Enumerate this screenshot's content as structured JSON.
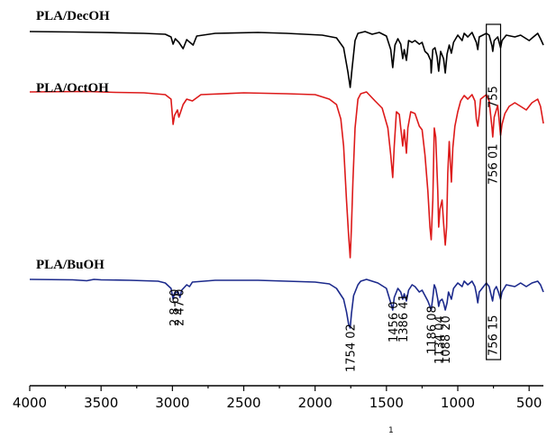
{
  "chart_data": {
    "type": "line",
    "xlabel": "1",
    "xlim": [
      4000,
      400
    ],
    "x_reversed": true,
    "xticks": [
      "4000",
      "3500",
      "3000",
      "2500",
      "2000",
      "1500",
      "1000",
      "500"
    ],
    "xtick_values": [
      4000,
      3500,
      3000,
      2500,
      2000,
      1500,
      1000,
      500
    ],
    "colors": {
      "PLA/DecOH": "#000000",
      "PLA/OctOH": "#dd1a1a",
      "PLA/BuOH": "#1c2a8c"
    },
    "series": [
      {
        "name": "PLA/DecOH",
        "offset": 35,
        "points": [
          [
            4000,
            0
          ],
          [
            3700,
            -0.5
          ],
          [
            3500,
            -1
          ],
          [
            3200,
            -2
          ],
          [
            3050,
            -3
          ],
          [
            3010,
            -6
          ],
          [
            2995,
            -14
          ],
          [
            2980,
            -8
          ],
          [
            2955,
            -12
          ],
          [
            2925,
            -19
          ],
          [
            2900,
            -9
          ],
          [
            2855,
            -15
          ],
          [
            2830,
            -5
          ],
          [
            2700,
            -2
          ],
          [
            2400,
            -1
          ],
          [
            2200,
            -2
          ],
          [
            1950,
            -4
          ],
          [
            1850,
            -7
          ],
          [
            1800,
            -18
          ],
          [
            1770,
            -45
          ],
          [
            1754,
            -62
          ],
          [
            1740,
            -40
          ],
          [
            1720,
            -10
          ],
          [
            1700,
            -2
          ],
          [
            1650,
            0
          ],
          [
            1600,
            -3
          ],
          [
            1550,
            -1
          ],
          [
            1500,
            -5
          ],
          [
            1470,
            -20
          ],
          [
            1456,
            -40
          ],
          [
            1440,
            -15
          ],
          [
            1420,
            -8
          ],
          [
            1400,
            -14
          ],
          [
            1386,
            -30
          ],
          [
            1375,
            -20
          ],
          [
            1360,
            -32
          ],
          [
            1345,
            -10
          ],
          [
            1320,
            -12
          ],
          [
            1300,
            -10
          ],
          [
            1270,
            -14
          ],
          [
            1250,
            -12
          ],
          [
            1230,
            -22
          ],
          [
            1210,
            -25
          ],
          [
            1190,
            -32
          ],
          [
            1186,
            -46
          ],
          [
            1175,
            -20
          ],
          [
            1160,
            -18
          ],
          [
            1145,
            -28
          ],
          [
            1134,
            -44
          ],
          [
            1120,
            -22
          ],
          [
            1100,
            -30
          ],
          [
            1088,
            -46
          ],
          [
            1075,
            -25
          ],
          [
            1060,
            -15
          ],
          [
            1045,
            -24
          ],
          [
            1030,
            -12
          ],
          [
            1000,
            -4
          ],
          [
            970,
            -10
          ],
          [
            955,
            -2
          ],
          [
            930,
            -6
          ],
          [
            900,
            -1
          ],
          [
            870,
            -12
          ],
          [
            860,
            -20
          ],
          [
            850,
            -6
          ],
          [
            800,
            -2
          ],
          [
            780,
            -4
          ],
          [
            760,
            -16
          ],
          [
            755,
            -22
          ],
          [
            745,
            -10
          ],
          [
            720,
            -6
          ],
          [
            700,
            -18
          ],
          [
            690,
            -10
          ],
          [
            660,
            -4
          ],
          [
            600,
            -6
          ],
          [
            560,
            -4
          ],
          [
            500,
            -10
          ],
          [
            470,
            -6
          ],
          [
            440,
            -2
          ],
          [
            420,
            -8
          ],
          [
            400,
            -15
          ]
        ]
      },
      {
        "name": "PLA/OctOH",
        "offset": 0,
        "points": [
          [
            4000,
            0
          ],
          [
            3600,
            0.5
          ],
          [
            3400,
            -0.5
          ],
          [
            3200,
            -1
          ],
          [
            3050,
            -3
          ],
          [
            3010,
            -8
          ],
          [
            2995,
            -36
          ],
          [
            2985,
            -26
          ],
          [
            2965,
            -20
          ],
          [
            2955,
            -28
          ],
          [
            2925,
            -14
          ],
          [
            2900,
            -8
          ],
          [
            2860,
            -10
          ],
          [
            2800,
            -3
          ],
          [
            2500,
            -1
          ],
          [
            2200,
            -2
          ],
          [
            2000,
            -3
          ],
          [
            1900,
            -8
          ],
          [
            1850,
            -14
          ],
          [
            1820,
            -30
          ],
          [
            1800,
            -60
          ],
          [
            1780,
            -120
          ],
          [
            1765,
            -160
          ],
          [
            1754,
            -184
          ],
          [
            1745,
            -150
          ],
          [
            1735,
            -100
          ],
          [
            1720,
            -40
          ],
          [
            1700,
            -8
          ],
          [
            1680,
            -2
          ],
          [
            1640,
            0
          ],
          [
            1580,
            -10
          ],
          [
            1530,
            -18
          ],
          [
            1490,
            -40
          ],
          [
            1470,
            -70
          ],
          [
            1456,
            -95
          ],
          [
            1445,
            -60
          ],
          [
            1430,
            -22
          ],
          [
            1410,
            -25
          ],
          [
            1386,
            -60
          ],
          [
            1375,
            -42
          ],
          [
            1360,
            -68
          ],
          [
            1350,
            -40
          ],
          [
            1330,
            -22
          ],
          [
            1300,
            -24
          ],
          [
            1270,
            -38
          ],
          [
            1250,
            -42
          ],
          [
            1230,
            -70
          ],
          [
            1210,
            -110
          ],
          [
            1195,
            -150
          ],
          [
            1186,
            -164
          ],
          [
            1175,
            -120
          ],
          [
            1165,
            -40
          ],
          [
            1155,
            -50
          ],
          [
            1140,
            -110
          ],
          [
            1134,
            -150
          ],
          [
            1125,
            -130
          ],
          [
            1110,
            -120
          ],
          [
            1100,
            -145
          ],
          [
            1088,
            -170
          ],
          [
            1078,
            -150
          ],
          [
            1070,
            -90
          ],
          [
            1060,
            -55
          ],
          [
            1045,
            -100
          ],
          [
            1035,
            -62
          ],
          [
            1020,
            -38
          ],
          [
            1000,
            -22
          ],
          [
            980,
            -10
          ],
          [
            955,
            -4
          ],
          [
            930,
            -8
          ],
          [
            900,
            -3
          ],
          [
            880,
            -10
          ],
          [
            870,
            -30
          ],
          [
            860,
            -38
          ],
          [
            850,
            -25
          ],
          [
            840,
            -8
          ],
          [
            800,
            -3
          ],
          [
            780,
            -10
          ],
          [
            760,
            -40
          ],
          [
            755,
            -50
          ],
          [
            745,
            -28
          ],
          [
            730,
            -20
          ],
          [
            720,
            -15
          ],
          [
            700,
            -48
          ],
          [
            690,
            -36
          ],
          [
            670,
            -24
          ],
          [
            640,
            -16
          ],
          [
            600,
            -12
          ],
          [
            560,
            -16
          ],
          [
            520,
            -20
          ],
          [
            480,
            -12
          ],
          [
            440,
            -8
          ],
          [
            420,
            -16
          ],
          [
            400,
            -35
          ]
        ]
      },
      {
        "name": "PLA/BuOH",
        "offset": 310,
        "points": [
          [
            4000,
            0
          ],
          [
            3700,
            -0.5
          ],
          [
            3600,
            -1.5
          ],
          [
            3550,
            0
          ],
          [
            3500,
            -0.5
          ],
          [
            3300,
            -1
          ],
          [
            3100,
            -2
          ],
          [
            3050,
            -4
          ],
          [
            3010,
            -10
          ],
          [
            2995,
            -22
          ],
          [
            2985,
            -15
          ],
          [
            2960,
            -14
          ],
          [
            2947,
            -20
          ],
          [
            2935,
            -12
          ],
          [
            2900,
            -6
          ],
          [
            2880,
            -8
          ],
          [
            2860,
            -3
          ],
          [
            2700,
            -1
          ],
          [
            2400,
            -1
          ],
          [
            2200,
            -2
          ],
          [
            2000,
            -3
          ],
          [
            1900,
            -5
          ],
          [
            1850,
            -10
          ],
          [
            1800,
            -22
          ],
          [
            1780,
            -36
          ],
          [
            1765,
            -50
          ],
          [
            1754,
            -54
          ],
          [
            1745,
            -38
          ],
          [
            1730,
            -18
          ],
          [
            1700,
            -6
          ],
          [
            1680,
            -2
          ],
          [
            1640,
            0
          ],
          [
            1600,
            -2
          ],
          [
            1560,
            -4
          ],
          [
            1500,
            -10
          ],
          [
            1470,
            -26
          ],
          [
            1456,
            -34
          ],
          [
            1445,
            -20
          ],
          [
            1420,
            -10
          ],
          [
            1400,
            -14
          ],
          [
            1386,
            -22
          ],
          [
            1375,
            -16
          ],
          [
            1360,
            -24
          ],
          [
            1345,
            -12
          ],
          [
            1320,
            -6
          ],
          [
            1300,
            -8
          ],
          [
            1270,
            -14
          ],
          [
            1250,
            -12
          ],
          [
            1230,
            -18
          ],
          [
            1210,
            -24
          ],
          [
            1195,
            -30
          ],
          [
            1186,
            -34
          ],
          [
            1175,
            -20
          ],
          [
            1165,
            -6
          ],
          [
            1155,
            -10
          ],
          [
            1140,
            -22
          ],
          [
            1134,
            -30
          ],
          [
            1125,
            -24
          ],
          [
            1110,
            -22
          ],
          [
            1100,
            -26
          ],
          [
            1088,
            -34
          ],
          [
            1075,
            -26
          ],
          [
            1065,
            -14
          ],
          [
            1045,
            -22
          ],
          [
            1030,
            -10
          ],
          [
            1000,
            -4
          ],
          [
            970,
            -8
          ],
          [
            955,
            -2
          ],
          [
            930,
            -6
          ],
          [
            900,
            -2
          ],
          [
            880,
            -8
          ],
          [
            870,
            -16
          ],
          [
            860,
            -26
          ],
          [
            850,
            -14
          ],
          [
            800,
            -4
          ],
          [
            780,
            -8
          ],
          [
            765,
            -18
          ],
          [
            756,
            -24
          ],
          [
            745,
            -12
          ],
          [
            730,
            -8
          ],
          [
            715,
            -14
          ],
          [
            700,
            -22
          ],
          [
            690,
            -14
          ],
          [
            660,
            -6
          ],
          [
            600,
            -8
          ],
          [
            560,
            -4
          ],
          [
            520,
            -8
          ],
          [
            480,
            -4
          ],
          [
            440,
            -2
          ],
          [
            420,
            -6
          ],
          [
            400,
            -14
          ]
        ]
      }
    ],
    "series_labels": [
      "PLA/DecOH",
      "PLA/OctOH",
      "PLA/BuOH"
    ],
    "peak_annotations": [
      {
        "text": "2 8 60",
        "x": 2990
      },
      {
        "text": "2 47 0",
        "x": 2955
      },
      {
        "text": "1754 02",
        "x": 1754
      },
      {
        "text": "1456 0",
        "x": 1456
      },
      {
        "text": "1386 41",
        "x": 1386
      },
      {
        "text": "1186 08",
        "x": 1186
      },
      {
        "text": "1134 04",
        "x": 1134
      },
      {
        "text": "1088 20",
        "x": 1088
      },
      {
        "text": "756 15",
        "x": 756
      }
    ],
    "box_annotations": [
      {
        "text": "755",
        "series": "PLA/DecOH"
      },
      {
        "text": "756 01",
        "series": "PLA/OctOH"
      }
    ],
    "highlight_box": {
      "x_from": 800,
      "x_to": 700
    }
  }
}
